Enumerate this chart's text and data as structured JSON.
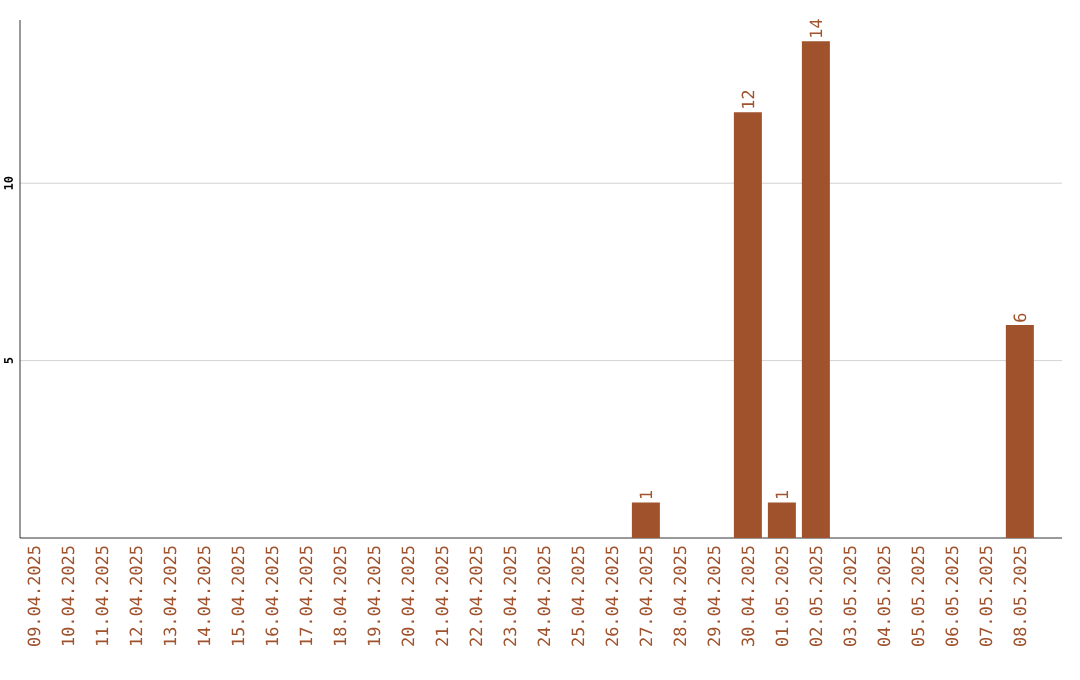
{
  "chart_data": {
    "type": "bar",
    "categories": [
      "09.04.2025",
      "10.04.2025",
      "11.04.2025",
      "12.04.2025",
      "13.04.2025",
      "14.04.2025",
      "15.04.2025",
      "16.04.2025",
      "17.04.2025",
      "18.04.2025",
      "19.04.2025",
      "20.04.2025",
      "21.04.2025",
      "22.04.2025",
      "23.04.2025",
      "24.04.2025",
      "25.04.2025",
      "26.04.2025",
      "27.04.2025",
      "28.04.2025",
      "29.04.2025",
      "30.04.2025",
      "01.05.2025",
      "02.05.2025",
      "03.05.2025",
      "04.05.2025",
      "05.05.2025",
      "06.05.2025",
      "07.05.2025",
      "08.05.2025"
    ],
    "values": [
      0,
      0,
      0,
      0,
      0,
      0,
      0,
      0,
      0,
      0,
      0,
      0,
      0,
      0,
      0,
      0,
      0,
      0,
      1,
      0,
      0,
      12,
      1,
      14,
      0,
      0,
      0,
      0,
      0,
      6
    ],
    "value_labels": [
      null,
      null,
      null,
      null,
      null,
      null,
      null,
      null,
      null,
      null,
      null,
      null,
      null,
      null,
      null,
      null,
      null,
      null,
      "1",
      null,
      null,
      "12",
      "1",
      "14",
      null,
      null,
      null,
      null,
      null,
      "6"
    ],
    "color": "#a0522d",
    "ylim": [
      0,
      14.6
    ],
    "yticks": [
      5,
      10
    ],
    "grid": "y"
  }
}
